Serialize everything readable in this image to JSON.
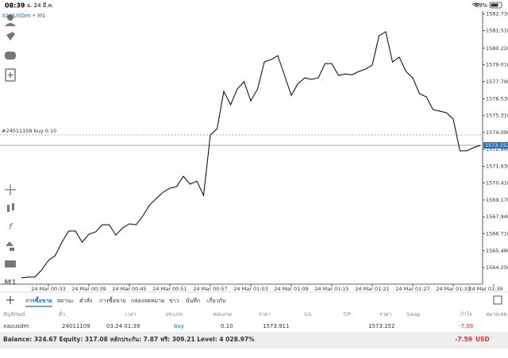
{
  "status_bar": {
    "time": "08:39",
    "date": "อ. 24 มี.ค.",
    "battery": "69%"
  },
  "left_toolbar": {
    "timeframe": "M1"
  },
  "chart_data": {
    "type": "line",
    "symbol": "XAUUSDm • M1",
    "color": "#000000",
    "categories": [
      null,
      null,
      null,
      null,
      "24 Mar 00:33",
      null,
      null,
      null,
      null,
      null,
      "24 Mar 00:39",
      null,
      null,
      null,
      null,
      null,
      "24 Mar 00:45",
      null,
      null,
      null,
      null,
      null,
      "24 Mar 00:51",
      null,
      null,
      null,
      null,
      null,
      "24 Mar 00:57",
      null,
      null,
      null,
      null,
      null,
      "24 Mar 01:03",
      null,
      null,
      null,
      null,
      null,
      "24 Mar 01:09",
      null,
      null,
      null,
      null,
      null,
      "24 Mar 01:15",
      null,
      null,
      null,
      null,
      null,
      "24 Mar 01:21",
      null,
      null,
      null,
      null,
      null,
      "24 Mar 01:27",
      null,
      null,
      null,
      null,
      null,
      "24 Mar 01:33",
      null,
      null,
      null,
      null,
      null,
      "24 Mar 01:39"
    ],
    "values": [
      1563.5,
      1563.56,
      1563.56,
      1564.08,
      1564.77,
      1565.12,
      1566.1,
      1566.91,
      1566.91,
      1566.1,
      1566.68,
      1566.85,
      1567.37,
      1567.37,
      1566.62,
      1567.14,
      1567.43,
      1567.37,
      1568.01,
      1568.81,
      1569.28,
      1569.74,
      1570.03,
      1570.14,
      1570.9,
      1570.32,
      1570.55,
      1569.51,
      1573.9,
      1574.36,
      1577.08,
      1576.1,
      1577.26,
      1577.78,
      1576.39,
      1577.26,
      1579.22,
      1579.39,
      1579.68,
      1578.24,
      1576.79,
      1577.66,
      1578.06,
      1577.95,
      1578.06,
      1579.1,
      1579.1,
      1578.24,
      1578.35,
      1578.29,
      1578.53,
      1578.7,
      1578.99,
      1581.13,
      1581.42,
      1579.22,
      1579.57,
      1578.53,
      1578.06,
      1576.91,
      1576.68,
      1575.75,
      1575.64,
      1575.52,
      1575.06,
      1572.75,
      1572.75,
      1572.98,
      1573.15,
      null,
      null
    ],
    "ylim": [
      1563.04,
      1583.27
    ],
    "yticks": [
      {
        "value": 1582.73,
        "label": "1582.730"
      },
      {
        "value": 1581.51,
        "label": "1581.510"
      },
      {
        "value": 1580.22,
        "label": "1580.220"
      },
      {
        "value": 1579.01,
        "label": "1579.010"
      },
      {
        "value": 1577.79,
        "label": "1577.790"
      },
      {
        "value": 1576.53,
        "label": "1576.530"
      },
      {
        "value": 1575.31,
        "label": "1575.310"
      },
      {
        "value": 1574.09,
        "label": "1574.090"
      },
      {
        "value": 1572.86,
        "label": "1572.860"
      },
      {
        "value": 1571.63,
        "label": "1571.630"
      },
      {
        "value": 1570.41,
        "label": "1570.410"
      },
      {
        "value": 1569.17,
        "label": "1569.170"
      },
      {
        "value": 1567.94,
        "label": "1567.940"
      },
      {
        "value": 1566.71,
        "label": "1566.710"
      },
      {
        "value": 1565.48,
        "label": "1565.480"
      },
      {
        "value": 1564.25,
        "label": "1564.250"
      }
    ],
    "order_line": {
      "label": "#24011109 buy 0.10",
      "value": 1573.911
    },
    "price_line": {
      "value": 1573.152,
      "color": "#1e6fc6"
    }
  },
  "tabs": [
    "การซื้อขาย",
    "สถานะ",
    "คำสั่ง",
    "การซื้อขาย",
    "กล่องจดหมาย",
    "ข่าว",
    "บันทึก",
    "เกี่ยวกับ"
  ],
  "table": {
    "headers": [
      "สัญลักษณ์",
      "ตั๋ว",
      "เวลา",
      "ประเภท",
      "Volume",
      "ราคา",
      "S/L",
      "T/P",
      "ราคา",
      "Swap",
      "กำไร",
      "หมายเหตุ"
    ],
    "row": {
      "symbol": "xauusdm",
      "ticket": "24011109",
      "time": "03.24 01:39",
      "type": "buy",
      "volume": "0.10",
      "open_price": "1573.911",
      "price": "1573.152",
      "profit": "-7.59"
    }
  },
  "footer": {
    "summary": "Balance: 324.67 Equity: 317.08 หลักประกัน: 7.87 ฟรี: 309.21 Level: 4 028.97%",
    "profit": "-7.59",
    "currency": "USD"
  }
}
